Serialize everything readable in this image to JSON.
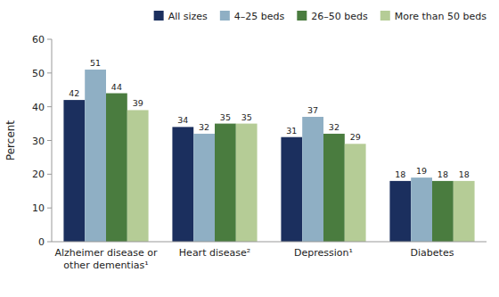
{
  "chart_data": {
    "type": "bar",
    "categories": [
      "Alzheimer disease or\nother dementias¹",
      "Heart disease²",
      "Depression¹",
      "Diabetes"
    ],
    "series": [
      {
        "name": "All sizes",
        "color": "#1b2f5e",
        "values": [
          42,
          34,
          31,
          18
        ]
      },
      {
        "name": "4–25 beds",
        "color": "#8fafc4",
        "values": [
          51,
          32,
          37,
          19
        ]
      },
      {
        "name": "26–50 beds",
        "color": "#4a7c3f",
        "values": [
          44,
          35,
          32,
          18
        ]
      },
      {
        "name": "More than 50 beds",
        "color": "#b5cc96",
        "values": [
          39,
          35,
          29,
          18
        ]
      }
    ],
    "y_label": "Percent",
    "ylim": [
      0,
      60
    ],
    "yticks": [
      0,
      10,
      20,
      30,
      40,
      50,
      60
    ],
    "data_labels": true,
    "legend": "upper right",
    "grid": false
  }
}
